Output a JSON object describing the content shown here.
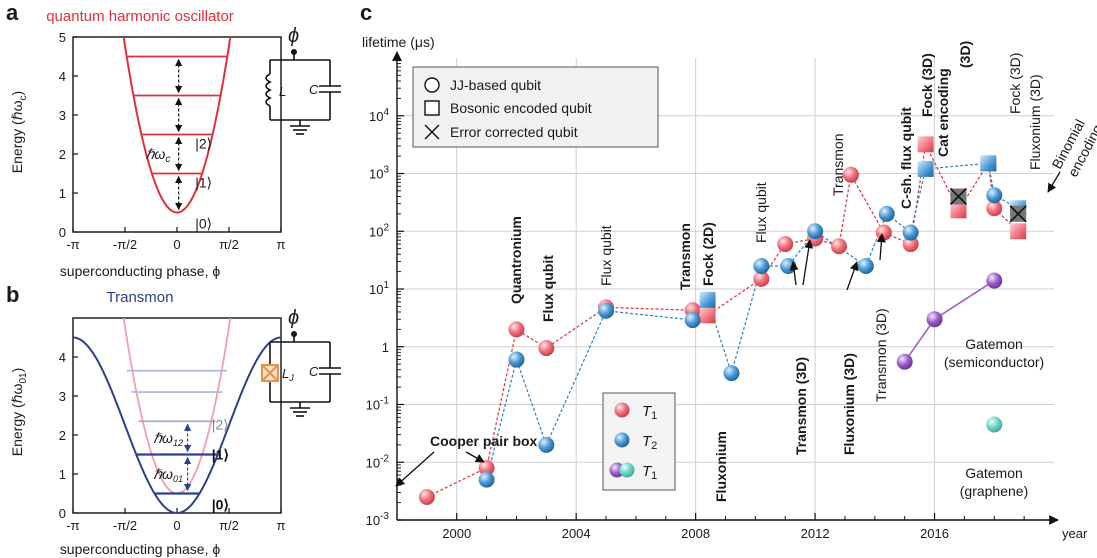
{
  "panels": {
    "a": {
      "letter": "a",
      "title": "quantum harmonic oscillator",
      "circuit_phi": "ϕ",
      "circuit_L": "L",
      "circuit_C": "C"
    },
    "b": {
      "letter": "b",
      "title": "Transmon",
      "circuit_phi": "ϕ",
      "circuit_LJ": "L",
      "circuit_LJ_sub": "J",
      "circuit_C": "C"
    },
    "c": {
      "letter": "c"
    }
  },
  "colors": {
    "red": "#e0303a",
    "blue": "#2d3f8f",
    "t1": "#ef6f7b",
    "t2": "#4a98d4",
    "purple": "#9b5fc8",
    "teal": "#6fd3c7",
    "grid": "#cfcfcf",
    "pink": "#f0a0a8",
    "lavender": "#aab4dc",
    "orange": "#e8914a"
  },
  "chart_data": [
    {
      "type": "line",
      "id": "qho",
      "title": "quantum harmonic oscillator",
      "xlabel": "superconducting phase, ϕ",
      "ylabel": "Energy (ℏω",
      "ylabel_sub": "c",
      "ylabel_end": ")",
      "xticks": [
        "-π",
        "-π/2",
        "0",
        "π/2",
        "π"
      ],
      "yticks": [
        "0",
        "1",
        "2",
        "3",
        "4",
        "5"
      ],
      "xlim": [
        -3.1416,
        3.1416
      ],
      "ylim": [
        0,
        5
      ],
      "levels": [
        0.5,
        1.5,
        2.5,
        3.5,
        4.5
      ],
      "level_labels": [
        {
          "text": "|0⟩",
          "level": 0
        },
        {
          "text": "|1⟩",
          "level": 1
        },
        {
          "text": "|2⟩",
          "level": 2
        }
      ],
      "spacing_label": "ℏω",
      "spacing_label_sub": "c"
    },
    {
      "type": "line",
      "id": "transmon",
      "title": "Transmon",
      "xlabel": "superconducting phase, ϕ",
      "ylabel": "Energy (ℏω",
      "ylabel_sub": "01",
      "ylabel_end": ")",
      "xticks": [
        "-π",
        "-π/2",
        "0",
        "π/2",
        "π"
      ],
      "yticks": [
        "0",
        "1",
        "2",
        "3",
        "4"
      ],
      "xlim": [
        -3.1416,
        3.1416
      ],
      "ylim": [
        0,
        5
      ],
      "cosine_depth": 4.5,
      "levels": [
        0.5,
        1.5,
        2.35,
        3.1,
        3.65
      ],
      "level_labels": [
        {
          "text": "|0⟩",
          "level": 0,
          "bold": true
        },
        {
          "text": "|1⟩",
          "level": 1,
          "bold": true
        },
        {
          "text": "|2⟩",
          "level": 2,
          "bold": false
        }
      ],
      "spacing_labels": [
        {
          "text": "ℏω",
          "sub": "01",
          "from": 0,
          "to": 1
        },
        {
          "text": "ℏω",
          "sub": "12",
          "from": 1,
          "to": 2
        }
      ]
    },
    {
      "type": "scatter",
      "id": "lifetimes",
      "ylabel": "lifetime (μs)",
      "xlabel": "year",
      "yscale": "log",
      "ylim": [
        0.001,
        100000
      ],
      "xlim": [
        1998,
        2020
      ],
      "xticks": [
        2000,
        2004,
        2008,
        2012,
        2016
      ],
      "yticks": [
        {
          "value": 0.001,
          "label": "10",
          "exp": "-3"
        },
        {
          "value": 0.01,
          "label": "10",
          "exp": "-2"
        },
        {
          "value": 0.1,
          "label": "10",
          "exp": "-1"
        },
        {
          "value": 1,
          "label": "1",
          "exp": ""
        },
        {
          "value": 10,
          "label": "10",
          "exp": "1"
        },
        {
          "value": 100,
          "label": "10",
          "exp": "2"
        },
        {
          "value": 1000,
          "label": "10",
          "exp": "3"
        },
        {
          "value": 10000,
          "label": "10",
          "exp": "4"
        }
      ],
      "legend_markers": [
        {
          "shape": "circle",
          "label": "JJ-based qubit"
        },
        {
          "shape": "square",
          "label": "Bosonic encoded qubit"
        },
        {
          "shape": "cross",
          "label": "Error corrected qubit"
        }
      ],
      "legend_series": [
        {
          "symbol": "T",
          "sub": "1"
        },
        {
          "symbol": "T",
          "sub": "2"
        },
        {
          "symbol": "T",
          "sub": "1"
        }
      ],
      "series": [
        {
          "name": "T1",
          "points": [
            {
              "x": 1999,
              "y": 0.0025,
              "m": "c"
            },
            {
              "x": 2001,
              "y": 0.008,
              "m": "c"
            },
            {
              "x": 2002,
              "y": 2,
              "m": "c"
            },
            {
              "x": 2003,
              "y": 0.95,
              "m": "c"
            },
            {
              "x": 2005,
              "y": 4.8,
              "m": "c"
            },
            {
              "x": 2007.9,
              "y": 4.3,
              "m": "c"
            },
            {
              "x": 2008.4,
              "y": 3.5,
              "m": "s"
            },
            {
              "x": 2010.2,
              "y": 15,
              "m": "c"
            },
            {
              "x": 2011,
              "y": 60,
              "m": "c"
            },
            {
              "x": 2012,
              "y": 75,
              "m": "c"
            },
            {
              "x": 2012.8,
              "y": 55,
              "m": "c"
            },
            {
              "x": 2013.2,
              "y": 950,
              "m": "c"
            },
            {
              "x": 2014.3,
              "y": 95,
              "m": "c"
            },
            {
              "x": 2015.2,
              "y": 60,
              "m": "c"
            },
            {
              "x": 2015.7,
              "y": 3200,
              "m": "s"
            },
            {
              "x": 2016.8,
              "y": 230,
              "m": "s"
            },
            {
              "x": 2017.8,
              "y": 1500,
              "m": "s"
            },
            {
              "x": 2018,
              "y": 250,
              "m": "c"
            },
            {
              "x": 2018.8,
              "y": 100,
              "m": "s"
            }
          ]
        },
        {
          "name": "T2",
          "points": [
            {
              "x": 2001,
              "y": 0.005,
              "m": "c"
            },
            {
              "x": 2002,
              "y": 0.6,
              "m": "c"
            },
            {
              "x": 2003,
              "y": 0.02,
              "m": "c"
            },
            {
              "x": 2005,
              "y": 4.2,
              "m": "c"
            },
            {
              "x": 2007.9,
              "y": 2.9,
              "m": "c"
            },
            {
              "x": 2008.4,
              "y": 6.5,
              "m": "s"
            },
            {
              "x": 2009.2,
              "y": 0.35,
              "m": "c"
            },
            {
              "x": 2010.2,
              "y": 25,
              "m": "c"
            },
            {
              "x": 2011.1,
              "y": 25,
              "m": "c"
            },
            {
              "x": 2012,
              "y": 100,
              "m": "c"
            },
            {
              "x": 2013.7,
              "y": 25,
              "m": "c"
            },
            {
              "x": 2014.4,
              "y": 200,
              "m": "c"
            },
            {
              "x": 2015.2,
              "y": 95,
              "m": "c"
            },
            {
              "x": 2015.7,
              "y": 1200,
              "m": "s"
            },
            {
              "x": 2017.8,
              "y": 1500,
              "m": "s"
            },
            {
              "x": 2018,
              "y": 420,
              "m": "c"
            },
            {
              "x": 2018.8,
              "y": 250,
              "m": "s"
            }
          ]
        },
        {
          "name": "T1",
          "points": [
            {
              "x": 2015,
              "y": 0.55,
              "m": "c"
            },
            {
              "x": 2016,
              "y": 3,
              "m": "c"
            },
            {
              "x": 2018,
              "y": 14,
              "m": "c"
            }
          ]
        },
        {
          "name": "T1",
          "points": [
            {
              "x": 2018,
              "y": 0.045,
              "m": "c"
            }
          ]
        }
      ],
      "error_corrected": [
        {
          "x": 2016.8,
          "y": 400
        },
        {
          "x": 2018.8,
          "y": 200
        }
      ],
      "annotations": [
        {
          "text": "Cooper pair box",
          "bold": true
        },
        {
          "text": "Quantronium",
          "bold": true
        },
        {
          "text": "Flux qubit",
          "bold": true
        },
        {
          "text": "Flux qubit",
          "bold": false
        },
        {
          "text": "Transmon",
          "bold": true
        },
        {
          "text": "Fock (2D)",
          "bold": true
        },
        {
          "text": "Fluxonium",
          "bold": true
        },
        {
          "text": "Flux qubit",
          "bold": false
        },
        {
          "text": "Transmon (3D)",
          "bold": true
        },
        {
          "text": "Transmon",
          "bold": false
        },
        {
          "text": "Fluxonium (3D)",
          "bold": true
        },
        {
          "text": "Transmon (3D)",
          "bold": false
        },
        {
          "text": "C-sh. flux qubit",
          "bold": true
        },
        {
          "text": "Fock (3D)",
          "bold": true
        },
        {
          "text": "Cat encoding",
          "bold": true
        },
        {
          "text": "(3D)",
          "bold": true
        },
        {
          "text": "Fock (3D)",
          "bold": false
        },
        {
          "text": "Fluxonium (3D)",
          "bold": false
        },
        {
          "text": "Binomial",
          "bold": false
        },
        {
          "text": "encoding (3D)",
          "bold": false
        },
        {
          "text": "Gatemon",
          "bold": false
        },
        {
          "text": "(semiconductor)",
          "bold": false
        },
        {
          "text": "Gatemon",
          "bold": false
        },
        {
          "text": "(graphene)",
          "bold": false
        }
      ]
    }
  ]
}
